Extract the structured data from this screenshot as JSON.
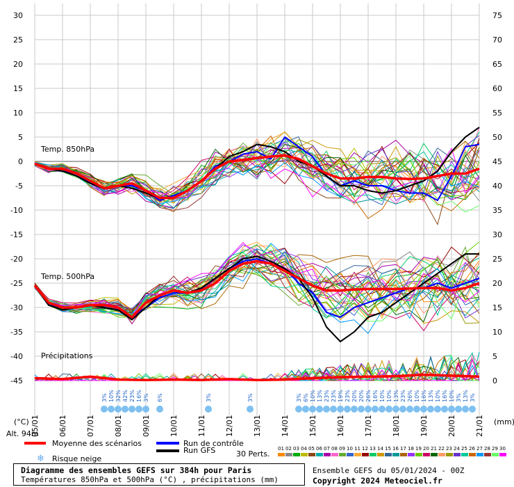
{
  "chart_data": {
    "type": "line",
    "title": "Diagramme des ensembles GEFS sur 384h pour Paris",
    "subtitle": "Températures 850hPa et 500hPa (°C) , précipitations (mm)",
    "run": "Ensemble GEFS du 05/01/2024 - 00Z",
    "copyright": "Copyright 2024 Meteociel.fr",
    "ylabel_left": "(°C)",
    "ylabel_right": "(mm)",
    "altitude": "Alt. 94m",
    "y_left_ticks": [
      30,
      25,
      20,
      15,
      10,
      5,
      0,
      -5,
      -10,
      -15,
      -20,
      -25,
      -30,
      -35,
      -40,
      -45
    ],
    "y_right_ticks": [
      75,
      70,
      65,
      60,
      55,
      50,
      45,
      40,
      35,
      30,
      25,
      20,
      15,
      10,
      5,
      0
    ],
    "ylim_left": [
      -45,
      30
    ],
    "ylim_right": [
      0,
      75
    ],
    "dates": [
      "05/01",
      "06/01",
      "07/01",
      "08/01",
      "09/01",
      "10/01",
      "11/01",
      "12/01",
      "13/01",
      "14/01",
      "15/01",
      "16/01",
      "17/01",
      "18/01",
      "19/01",
      "20/01",
      "21/01"
    ],
    "panel_labels": [
      "Temp. 850hPa",
      "Temp. 500hPa",
      "Précipitations"
    ],
    "legend": {
      "mean": {
        "label": "Moyenne des scénarios",
        "color": "#ff0000"
      },
      "control": {
        "label": "Run de contrôle",
        "color": "#0000ff"
      },
      "gfs": {
        "label": "Run GFS",
        "color": "#000000"
      },
      "snow": {
        "label": "Risque neige",
        "icon": "snowflake-icon"
      },
      "perts_label": "30 Perts."
    },
    "perturbation_ids": [
      "01",
      "02",
      "03",
      "04",
      "05",
      "06",
      "07",
      "08",
      "09",
      "10",
      "11",
      "12",
      "13",
      "14",
      "15",
      "16",
      "17",
      "18",
      "19",
      "20",
      "21",
      "22",
      "23",
      "24",
      "25",
      "26",
      "27",
      "28",
      "29",
      "30"
    ],
    "perturbation_colors": [
      "#ff8800",
      "#888888",
      "#00aa00",
      "#bbbb00",
      "#8b4513",
      "#00aaaa",
      "#aa00aa",
      "#ff66cc",
      "#66aa33",
      "#3366cc",
      "#ffaa33",
      "#990000",
      "#00cc66",
      "#cc9900",
      "#336699",
      "#009999",
      "#aa6600",
      "#9933ff",
      "#66cc00",
      "#cc0066",
      "#006600",
      "#ff9966",
      "#999900",
      "#6633cc",
      "#00cc99",
      "#cc6600",
      "#0099ff",
      "#993333",
      "#66ff66",
      "#ff00ff"
    ],
    "snow_risk": [
      {
        "x": 2.5,
        "label": "3%"
      },
      {
        "x": 2.75,
        "label": "10%"
      },
      {
        "x": 3.0,
        "label": "32%"
      },
      {
        "x": 3.25,
        "label": "42%"
      },
      {
        "x": 3.5,
        "label": "23%"
      },
      {
        "x": 3.75,
        "label": "16%"
      },
      {
        "x": 4.0,
        "label": "3%"
      },
      {
        "x": 4.5,
        "label": "6%"
      },
      {
        "x": 6.25,
        "label": "3%"
      },
      {
        "x": 7.75,
        "label": "3%"
      },
      {
        "x": 9.5,
        "label": "3%"
      },
      {
        "x": 9.75,
        "label": "6%"
      },
      {
        "x": 10.0,
        "label": "10%"
      },
      {
        "x": 10.25,
        "label": "13%"
      },
      {
        "x": 10.5,
        "label": "23%"
      },
      {
        "x": 10.75,
        "label": "23%"
      },
      {
        "x": 11.0,
        "label": "19%"
      },
      {
        "x": 11.25,
        "label": "23%"
      },
      {
        "x": 11.5,
        "label": "20%"
      },
      {
        "x": 11.75,
        "label": "20%"
      },
      {
        "x": 12.0,
        "label": "26%"
      },
      {
        "x": 12.25,
        "label": "16%"
      },
      {
        "x": 12.5,
        "label": "10%"
      },
      {
        "x": 12.75,
        "label": "10%"
      },
      {
        "x": 13.0,
        "label": "13%"
      },
      {
        "x": 13.25,
        "label": "23%"
      },
      {
        "x": 13.5,
        "label": "26%"
      },
      {
        "x": 13.75,
        "label": "10%"
      },
      {
        "x": 14.0,
        "label": "16%"
      },
      {
        "x": 14.25,
        "label": "13%"
      },
      {
        "x": 14.5,
        "label": "10%"
      },
      {
        "x": 14.75,
        "label": "16%"
      },
      {
        "x": 15.0,
        "label": "10%"
      },
      {
        "x": 15.25,
        "label": "3%"
      },
      {
        "x": 15.5,
        "label": "13%"
      },
      {
        "x": 15.75,
        "label": "3%"
      }
    ],
    "series": [
      {
        "name": "Moyenne des scénarios",
        "level": "850hPa",
        "x": [
          0,
          0.5,
          1,
          1.5,
          2,
          2.5,
          3,
          3.5,
          4,
          4.5,
          5,
          5.5,
          6,
          6.5,
          7,
          7.5,
          8,
          8.5,
          9,
          9.5,
          10,
          10.5,
          11,
          11.5,
          12,
          12.5,
          13,
          13.5,
          14,
          14.5,
          15,
          15.5,
          16
        ],
        "y": [
          -0.5,
          -1.5,
          -1.5,
          -2.5,
          -4,
          -5.5,
          -5,
          -4.5,
          -6,
          -7.5,
          -7.5,
          -6,
          -4,
          -1.5,
          0,
          0.3,
          0.7,
          1,
          1.2,
          0.5,
          -1,
          -2.5,
          -3.5,
          -3.5,
          -3.2,
          -3.2,
          -3.5,
          -3.6,
          -3.5,
          -3,
          -2.5,
          -2.5,
          -1.5
        ]
      },
      {
        "name": "Run de contrôle",
        "level": "850hPa",
        "x": [
          0,
          0.5,
          1,
          1.5,
          2,
          2.5,
          3,
          3.5,
          4,
          4.5,
          5,
          5.5,
          6,
          6.5,
          7,
          7.5,
          8,
          8.5,
          9,
          9.5,
          10,
          10.5,
          11,
          11.5,
          12,
          12.5,
          13,
          13.5,
          14,
          14.5,
          15,
          15.5,
          16
        ],
        "y": [
          -0.5,
          -1.5,
          -2,
          -2.5,
          -4.5,
          -5.5,
          -5,
          -5,
          -6,
          -8,
          -7,
          -6,
          -4,
          -1,
          0,
          1.5,
          2,
          0.5,
          5,
          3,
          1,
          -3,
          -5,
          -4,
          -5,
          -5,
          -6,
          -6.5,
          -6.5,
          -8,
          -3,
          3,
          3.5
        ]
      },
      {
        "name": "Run GFS",
        "level": "850hPa",
        "x": [
          0,
          0.5,
          1,
          1.5,
          2,
          2.5,
          3,
          3.5,
          4,
          4.5,
          5,
          5.5,
          6,
          6.5,
          7,
          7.5,
          8,
          8.5,
          9,
          9.5,
          10,
          10.5,
          11,
          11.5,
          12,
          12.5,
          13,
          13.5,
          14,
          14.5,
          15,
          15.5,
          16
        ],
        "y": [
          -0.5,
          -1.5,
          -2,
          -3,
          -4.5,
          -5.5,
          -5,
          -5.5,
          -6.5,
          -7.5,
          -7.5,
          -6,
          -4,
          -1.5,
          1,
          2,
          3.5,
          3,
          2,
          0,
          -1,
          -3,
          -5,
          -5,
          -6,
          -6.5,
          -6,
          -5,
          -4,
          -2,
          2,
          5,
          7
        ]
      },
      {
        "name": "Moyenne des scénarios",
        "level": "500hPa",
        "x": [
          0,
          0.5,
          1,
          1.5,
          2,
          2.5,
          3,
          3.5,
          4,
          4.5,
          5,
          5.5,
          6,
          6.5,
          7,
          7.5,
          8,
          8.5,
          9,
          9.5,
          10,
          10.5,
          11,
          11.5,
          12,
          12.5,
          13,
          13.5,
          14,
          14.5,
          15,
          15.5,
          16
        ],
        "y": [
          -25.5,
          -29,
          -30,
          -30,
          -29.5,
          -29.5,
          -30,
          -32,
          -29,
          -27.5,
          -26.5,
          -27,
          -26.5,
          -25,
          -22.5,
          -21,
          -20.5,
          -21,
          -22.5,
          -24,
          -25.5,
          -26.5,
          -26.5,
          -26.3,
          -26.2,
          -26.2,
          -26.2,
          -26.1,
          -26,
          -26,
          -26.5,
          -26,
          -25
        ]
      },
      {
        "name": "Run de contrôle",
        "level": "500hPa",
        "x": [
          0,
          0.5,
          1,
          1.5,
          2,
          2.5,
          3,
          3.5,
          4,
          4.5,
          5,
          5.5,
          6,
          6.5,
          7,
          7.5,
          8,
          8.5,
          9,
          9.5,
          10,
          10.5,
          11,
          11.5,
          12,
          12.5,
          13,
          13.5,
          14,
          14.5,
          15,
          15.5,
          16
        ],
        "y": [
          -25.5,
          -29.5,
          -30,
          -30,
          -29.5,
          -30,
          -30.5,
          -32,
          -30,
          -28,
          -27,
          -27,
          -26,
          -24,
          -22,
          -20.5,
          -20,
          -21,
          -22,
          -25,
          -27,
          -31,
          -32,
          -30,
          -29,
          -28,
          -27,
          -26,
          -26,
          -25,
          -26,
          -25,
          -24
        ]
      },
      {
        "name": "Run GFS",
        "level": "500hPa",
        "x": [
          0,
          0.5,
          1,
          1.5,
          2,
          2.5,
          3,
          3.5,
          4,
          4.5,
          5,
          5.5,
          6,
          6.5,
          7,
          7.5,
          8,
          8.5,
          9,
          9.5,
          10,
          10.5,
          11,
          11.5,
          12,
          12.5,
          13,
          13.5,
          14,
          14.5,
          15,
          15.5,
          16
        ],
        "y": [
          -25.5,
          -29.5,
          -30.5,
          -30,
          -29.5,
          -30,
          -30.5,
          -32.5,
          -30,
          -27.5,
          -26.5,
          -27,
          -26,
          -24,
          -22,
          -20,
          -19.5,
          -20.5,
          -22,
          -24,
          -28,
          -34,
          -37,
          -35,
          -32,
          -31,
          -29,
          -27,
          -25,
          -23,
          -21,
          -19,
          -19
        ]
      },
      {
        "name": "Moyenne des scénarios",
        "level": "precip",
        "x": [
          0,
          1,
          2,
          3,
          4,
          5,
          6,
          7,
          8,
          9,
          10,
          11,
          12,
          13,
          14,
          15,
          16
        ],
        "y": [
          0.5,
          0.3,
          0.8,
          0.2,
          0.1,
          0.2,
          0.1,
          0.3,
          0.1,
          0.2,
          0.5,
          0.7,
          0.8,
          0.9,
          1.2,
          1.0,
          0.8
        ]
      }
    ]
  }
}
